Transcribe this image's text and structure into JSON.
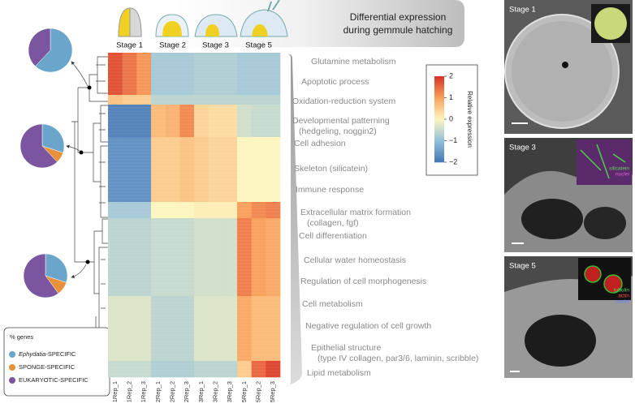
{
  "header": {
    "title": [
      "Differential expression",
      "during gemmule hatching"
    ]
  },
  "stages": [
    "Stage 1",
    "Stage 2",
    "Stage 3",
    "Stage 5"
  ],
  "annotations": [
    [
      "Glutamine metabolism"
    ],
    [
      "Apoptotic process"
    ],
    [
      "Oxidation-reduction system"
    ],
    [
      "Developmental patterning",
      "(hedgeling, noggin2)"
    ],
    [
      "Cell adhesion"
    ],
    [
      "Skeleton  (silicatein)"
    ],
    [
      "Immune response"
    ],
    [
      "Extracellular matrix formation",
      "(collagen, fgf)"
    ],
    [
      "Cell differentiation"
    ],
    [
      "Cellular water homeostasis"
    ],
    [
      "Regulation of cell morphogenesis"
    ],
    [
      "Cell metabolism"
    ],
    [
      "Negative regulation of cell growth"
    ],
    [
      "Epithelial structure",
      "(type IV collagen, par3/6, laminin, scribble)"
    ],
    [
      "Lipid metabolism"
    ]
  ],
  "legend": {
    "title": "% genes",
    "items": [
      {
        "name": "Ephydatia",
        "suffix": "-SPECIFIC",
        "color": "#6aa6cc"
      },
      {
        "name": "SPONGE-SPECIFIC",
        "color": "#e8913a"
      },
      {
        "name": "EUKARYOTIC-SPECIFIC",
        "color": "#7b55a0"
      }
    ]
  },
  "panels": [
    {
      "label": "Stage 1"
    },
    {
      "label": "Stage 3",
      "stains": [
        {
          "text": "silicatein",
          "color": "#5fd35f"
        },
        {
          "text": "nuclei",
          "color": "#e060e0"
        }
      ]
    },
    {
      "label": "Stage 5",
      "stains": [
        {
          "text": "tubulin",
          "color": "#5fd35f"
        },
        {
          "text": "actin",
          "color": "#ff5050"
        },
        {
          "text": "nuclei",
          "color": "#6080ff"
        }
      ]
    }
  ],
  "chart_data": [
    {
      "type": "heatmap",
      "columns": [
        "1Rep_1",
        "1Rep_2",
        "1Rep_3",
        "2Rep_1",
        "2Rep_2",
        "2Rep_3",
        "3Rep_1",
        "3Rep_2",
        "3Rep_3",
        "5Rep_1",
        "5Rep_2",
        "5Rep_3"
      ],
      "blocks": [
        {
          "rows": 13,
          "values": [
            1.7,
            1.4,
            1.1,
            -0.8,
            -0.8,
            -0.8,
            -0.7,
            -0.7,
            -0.7,
            -0.8,
            -0.8,
            -0.8
          ]
        },
        {
          "rows": 3,
          "values": [
            0.6,
            0.5,
            0.5,
            -0.6,
            -0.6,
            -0.6,
            -0.6,
            -0.6,
            -0.6,
            -0.6,
            -0.6,
            -0.6
          ]
        },
        {
          "rows": 10,
          "values": [
            -1.8,
            -1.8,
            -1.8,
            0.7,
            0.8,
            1.2,
            0.4,
            0.3,
            0.3,
            -0.4,
            -0.5,
            -0.5
          ]
        },
        {
          "rows": 20,
          "values": [
            -1.6,
            -1.6,
            -1.6,
            0.5,
            0.5,
            0.6,
            0.5,
            0.4,
            0.4,
            0,
            0,
            0
          ]
        },
        {
          "rows": 5,
          "values": [
            -0.8,
            -0.8,
            -0.8,
            0,
            0,
            0,
            0.1,
            0.1,
            0.1,
            1,
            1.2,
            1.3
          ]
        },
        {
          "rows": 24,
          "values": [
            -0.6,
            -0.6,
            -0.6,
            -0.5,
            -0.5,
            -0.5,
            -0.4,
            -0.4,
            -0.4,
            1.3,
            1,
            0.9
          ]
        },
        {
          "rows": 20,
          "values": [
            -0.3,
            -0.3,
            -0.3,
            -0.6,
            -0.6,
            -0.6,
            -0.3,
            -0.3,
            -0.3,
            0.9,
            0.7,
            0.7
          ]
        },
        {
          "rows": 5,
          "values": [
            -0.5,
            -0.5,
            -0.5,
            -0.7,
            -0.7,
            -0.7,
            -0.6,
            -0.6,
            -0.6,
            0.5,
            1.5,
            1.8
          ]
        }
      ],
      "zlim": [
        -2,
        2
      ],
      "zticks": [
        2,
        1,
        0,
        {
          "value": -1,
          "label": "−1"
        },
        {
          "value": -2,
          "label": "−2"
        }
      ],
      "colors": [
        "#4575b4",
        "#91bfdb",
        "#fdf5c0",
        "#f9a25e",
        "#d73027"
      ],
      "colorbar_label": "Relative expression"
    },
    {
      "type": "pie",
      "values": [
        62,
        0,
        38
      ]
    },
    {
      "type": "pie",
      "values": [
        30,
        8,
        62
      ]
    },
    {
      "type": "pie",
      "values": [
        30,
        10,
        60
      ]
    }
  ]
}
